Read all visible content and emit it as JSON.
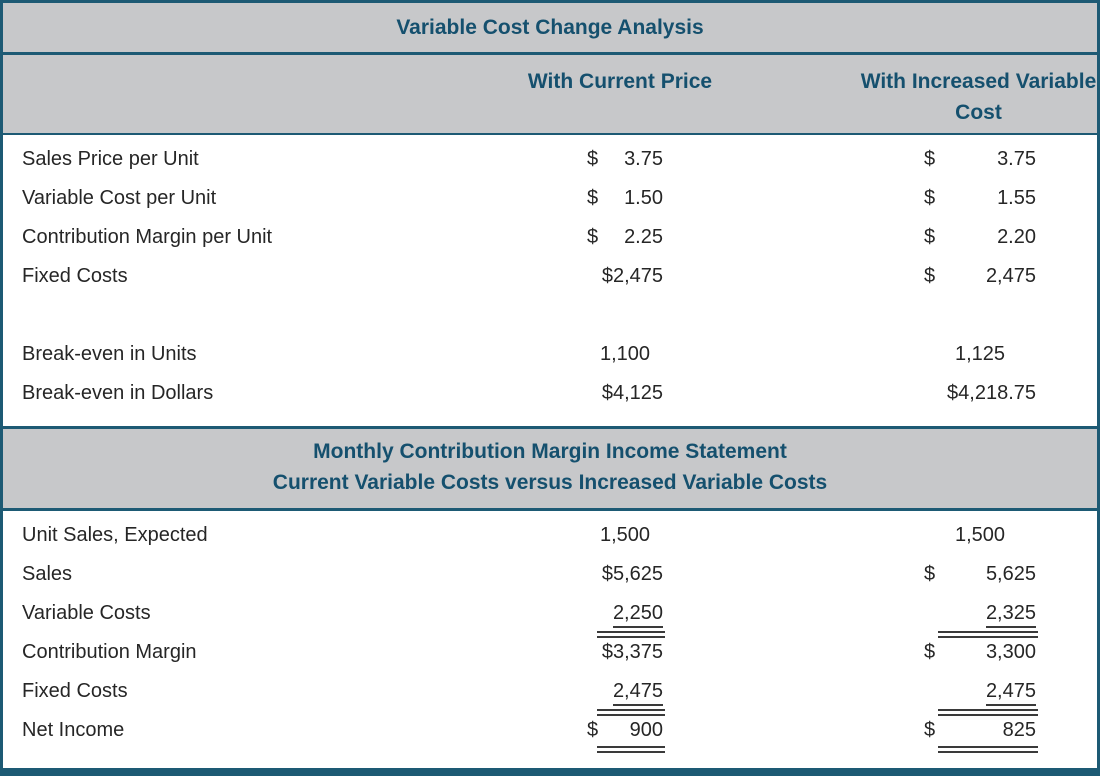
{
  "title": "Variable Cost Change Analysis",
  "col_headers": {
    "col1": "With Current Price",
    "col2": "With Increased Variable Cost"
  },
  "statement_title": {
    "line1": "Monthly Contribution Margin Income Statement",
    "line2": "Current Variable Costs versus Increased Variable Costs"
  },
  "colors": {
    "border_teal": "#1d5a74",
    "heading_text": "#15506e",
    "band_gray": "#c7c8ca",
    "body_text": "#262626",
    "rule": "#3a3a3a"
  },
  "analysis_rows": [
    {
      "label": "Sales Price per Unit",
      "c1": {
        "d": "$",
        "v": "3.75"
      },
      "c2": {
        "d": "$",
        "v": "3.75"
      }
    },
    {
      "label": "Variable Cost per Unit",
      "c1": {
        "d": "$",
        "v": "1.50"
      },
      "c2": {
        "d": "$",
        "v": "1.55"
      }
    },
    {
      "label": "Contribution Margin per Unit",
      "c1": {
        "d": "$",
        "v": "2.25"
      },
      "c2": {
        "d": "$",
        "v": "2.20"
      }
    },
    {
      "label": "Fixed Costs",
      "c1": {
        "v": "$2,475"
      },
      "c2": {
        "d": "$",
        "v": "2,475"
      }
    },
    {
      "spacer": true
    },
    {
      "label": "Break-even in Units",
      "c1": {
        "v": "1,100",
        "center": true
      },
      "c2": {
        "v": "1,125",
        "center": true
      }
    },
    {
      "label": "Break-even in Dollars",
      "c1": {
        "v": "$4,125"
      },
      "c2": {
        "v": "$4,218.75"
      }
    }
  ],
  "statement_rows": [
    {
      "label": "Unit Sales, Expected",
      "c1": {
        "v": "1,500",
        "center": true
      },
      "c2": {
        "v": "1,500",
        "center": true
      }
    },
    {
      "label": "Sales",
      "c1": {
        "v": "$5,625"
      },
      "c2": {
        "d": "$",
        "v": "5,625"
      }
    },
    {
      "label": "Variable Costs",
      "c1": {
        "v": "2,250",
        "underline": true,
        "double": true
      },
      "c2": {
        "v": "2,325",
        "underline": true,
        "double": true
      }
    },
    {
      "label": "Contribution Margin",
      "c1": {
        "v": "$3,375"
      },
      "c2": {
        "d": "$",
        "v": "3,300"
      }
    },
    {
      "label": "Fixed Costs",
      "c1": {
        "v": "2,475",
        "underline": true,
        "double": true
      },
      "c2": {
        "v": "2,475",
        "underline": true,
        "double": true
      }
    },
    {
      "label": "Net Income",
      "c1": {
        "d": "$",
        "v": "900",
        "double": true
      },
      "c2": {
        "d": "$",
        "v": "825",
        "double": true
      }
    }
  ]
}
